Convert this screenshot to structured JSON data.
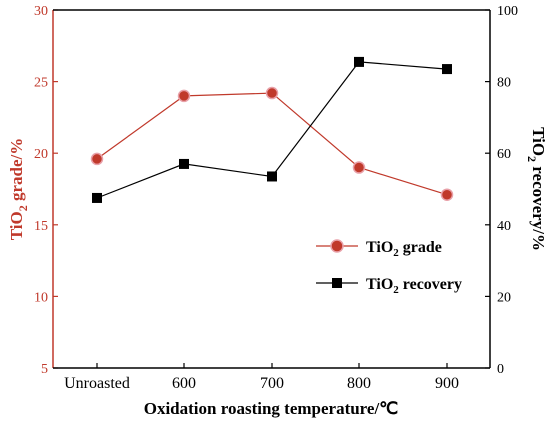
{
  "chart_data": {
    "type": "line",
    "categories": [
      "Unroasted",
      "600",
      "700",
      "800",
      "900"
    ],
    "xlabel": "Oxidation roasting temperature/℃",
    "ylabel_left": {
      "prefix": "TiO",
      "sub": "2",
      "suffix": " grade/%"
    },
    "ylabel_right": {
      "prefix": "TiO",
      "sub": "2",
      "suffix": " recovery/%"
    },
    "ylim_left": [
      5,
      30
    ],
    "yticks_left": [
      5,
      10,
      15,
      20,
      25,
      30
    ],
    "ylim_right": [
      0,
      100
    ],
    "yticks_right": [
      0,
      20,
      40,
      60,
      80,
      100
    ],
    "grid": false,
    "legend_position": "right-middle",
    "series": [
      {
        "name": {
          "prefix": "TiO",
          "sub": "2",
          "suffix": " grade"
        },
        "axis": "left",
        "marker": "circle",
        "color": "#c0392b",
        "values": [
          19.6,
          24.0,
          24.2,
          19.0,
          17.1
        ]
      },
      {
        "name": {
          "prefix": "TiO",
          "sub": "2",
          "suffix": " recovery"
        },
        "axis": "right",
        "marker": "square",
        "color": "#000000",
        "values": [
          47.5,
          57.0,
          53.5,
          85.5,
          83.5
        ]
      }
    ]
  }
}
